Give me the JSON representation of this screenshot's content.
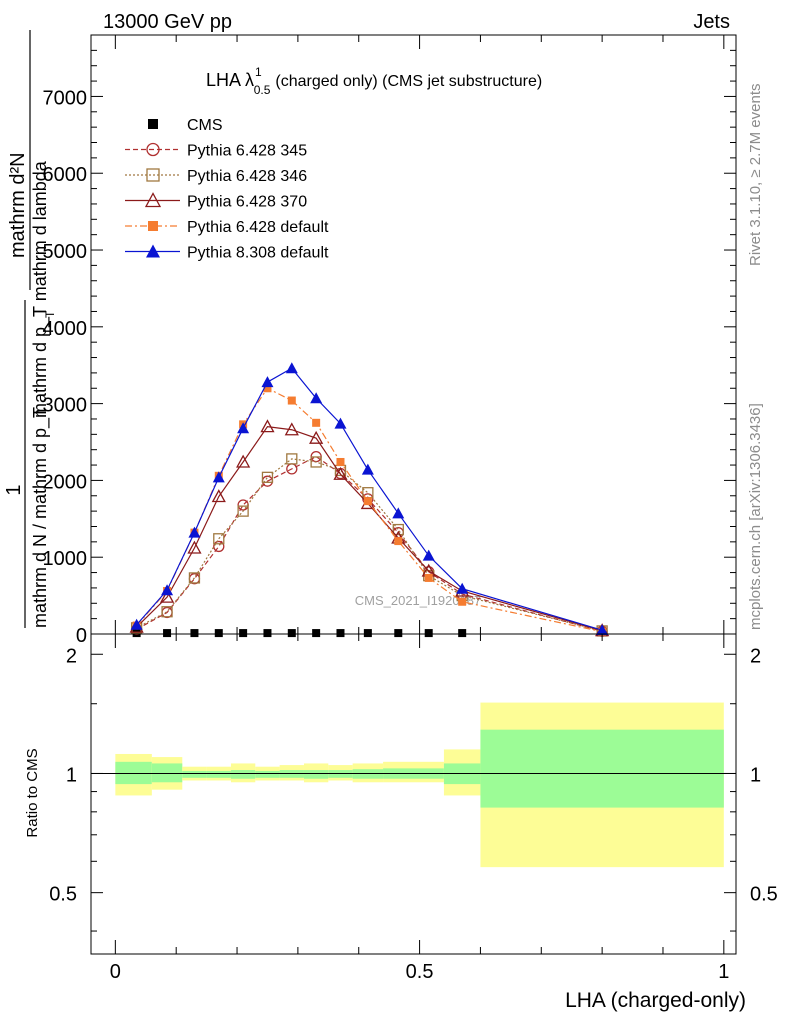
{
  "header": {
    "left": "13000 GeV pp",
    "right": "Jets"
  },
  "side_labels": {
    "rivet": "Rivet 3.1.10, ≥ 2.7M events",
    "mcplots": "mcplots.cern.ch [arXiv:1306.3436]"
  },
  "chart_data": [
    {
      "panel": "main",
      "type": "line",
      "title_main": "LHA λ",
      "title_sup": "1",
      "title_sub": "0.5",
      "title_rest": "(charged only) (CMS jet substructure)",
      "ylabel_prefix": "1",
      "ylabel_frac_den": "mathrm d N / mathrm d p_T",
      "ylabel_num": "mathrm d²N",
      "ylabel_den": "mathrm d p_T mathrm d lambda",
      "ylabel_sub": "T",
      "watermark": "CMS_2021_I1920187",
      "xlim": [
        -0.04,
        1.02
      ],
      "ylim": [
        0,
        7800
      ],
      "y_ticks": [
        0,
        1000,
        2000,
        3000,
        4000,
        5000,
        6000,
        7000
      ],
      "y_tick_labels": [
        "0",
        "1000",
        "2000",
        "3000",
        "4000",
        "5000",
        "6000",
        "7000"
      ],
      "legend_position": "top-left",
      "x": [
        0.035,
        0.085,
        0.13,
        0.17,
        0.21,
        0.25,
        0.29,
        0.33,
        0.37,
        0.415,
        0.465,
        0.515,
        0.57,
        0.8
      ],
      "series": [
        {
          "name": "CMS",
          "color": "#000000",
          "marker": "square-filled",
          "line": "none",
          "values": [
            12,
            12,
            12,
            12,
            12,
            12,
            12,
            12,
            12,
            12,
            12,
            12,
            12,
            null
          ]
        },
        {
          "name": "Pythia 6.428 345",
          "color": "#b03030",
          "marker": "circle-open",
          "line": "dashed",
          "values": [
            60,
            280,
            720,
            1140,
            1680,
            1990,
            2150,
            2310,
            2090,
            1760,
            1320,
            810,
            520,
            35
          ]
        },
        {
          "name": "Pythia 6.428 346",
          "color": "#a07840",
          "marker": "square-open",
          "line": "dotted",
          "values": [
            80,
            290,
            730,
            1240,
            1600,
            2040,
            2280,
            2240,
            2130,
            1840,
            1360,
            760,
            500,
            40
          ]
        },
        {
          "name": "Pythia 6.428 370",
          "color": "#8b1a1a",
          "marker": "triangle-open",
          "line": "solid",
          "values": [
            90,
            480,
            1120,
            1790,
            2240,
            2700,
            2660,
            2550,
            2080,
            1700,
            1250,
            820,
            560,
            45
          ]
        },
        {
          "name": "Pythia 6.428 default",
          "color": "#f57c30",
          "marker": "square-filled",
          "line": "dashdot",
          "values": [
            110,
            560,
            1320,
            2060,
            2730,
            3200,
            3040,
            2750,
            2240,
            1730,
            1210,
            730,
            420,
            30
          ]
        },
        {
          "name": "Pythia 8.308 default",
          "color": "#0a14d2",
          "marker": "triangle-filled",
          "line": "solid",
          "values": [
            120,
            570,
            1320,
            2040,
            2680,
            3280,
            3460,
            3070,
            2740,
            2140,
            1570,
            1020,
            590,
            50
          ]
        }
      ]
    },
    {
      "panel": "ratio",
      "type": "area",
      "ylabel": "Ratio to CMS",
      "xlabel": "LHA (charged-only)",
      "xlim": [
        -0.04,
        1.02
      ],
      "ylim": [
        0.35,
        2.25
      ],
      "y_ticks": [
        0.5,
        1,
        2
      ],
      "y_tick_labels": [
        "0.5",
        "1",
        "2"
      ],
      "x_ticks": [
        0,
        0.5,
        1
      ],
      "x_tick_labels": [
        "0",
        "0.5",
        "1"
      ],
      "reference_line": 1.0,
      "bins": [
        {
          "x0": 0.0,
          "x1": 0.06,
          "inner": [
            0.94,
            1.07
          ],
          "outer": [
            0.88,
            1.12
          ]
        },
        {
          "x0": 0.06,
          "x1": 0.11,
          "inner": [
            0.95,
            1.06
          ],
          "outer": [
            0.91,
            1.1
          ]
        },
        {
          "x0": 0.11,
          "x1": 0.15,
          "inner": [
            0.975,
            1.015
          ],
          "outer": [
            0.96,
            1.04
          ]
        },
        {
          "x0": 0.15,
          "x1": 0.19,
          "inner": [
            0.975,
            1.015
          ],
          "outer": [
            0.96,
            1.04
          ]
        },
        {
          "x0": 0.19,
          "x1": 0.23,
          "inner": [
            0.97,
            1.02
          ],
          "outer": [
            0.95,
            1.06
          ]
        },
        {
          "x0": 0.23,
          "x1": 0.27,
          "inner": [
            0.975,
            1.015
          ],
          "outer": [
            0.96,
            1.04
          ]
        },
        {
          "x0": 0.27,
          "x1": 0.31,
          "inner": [
            0.975,
            1.02
          ],
          "outer": [
            0.96,
            1.05
          ]
        },
        {
          "x0": 0.31,
          "x1": 0.35,
          "inner": [
            0.97,
            1.02
          ],
          "outer": [
            0.95,
            1.06
          ]
        },
        {
          "x0": 0.35,
          "x1": 0.39,
          "inner": [
            0.975,
            1.02
          ],
          "outer": [
            0.96,
            1.05
          ]
        },
        {
          "x0": 0.39,
          "x1": 0.44,
          "inner": [
            0.97,
            1.025
          ],
          "outer": [
            0.95,
            1.06
          ]
        },
        {
          "x0": 0.44,
          "x1": 0.49,
          "inner": [
            0.97,
            1.03
          ],
          "outer": [
            0.95,
            1.07
          ]
        },
        {
          "x0": 0.49,
          "x1": 0.54,
          "inner": [
            0.97,
            1.03
          ],
          "outer": [
            0.95,
            1.07
          ]
        },
        {
          "x0": 0.54,
          "x1": 0.6,
          "inner": [
            0.94,
            1.06
          ],
          "outer": [
            0.88,
            1.15
          ]
        },
        {
          "x0": 0.6,
          "x1": 1.0,
          "inner": [
            0.82,
            1.29
          ],
          "outer": [
            0.58,
            1.51
          ]
        }
      ]
    }
  ],
  "colors": {
    "band_inner": "#9cfc96",
    "band_outer": "#fdfd96"
  }
}
